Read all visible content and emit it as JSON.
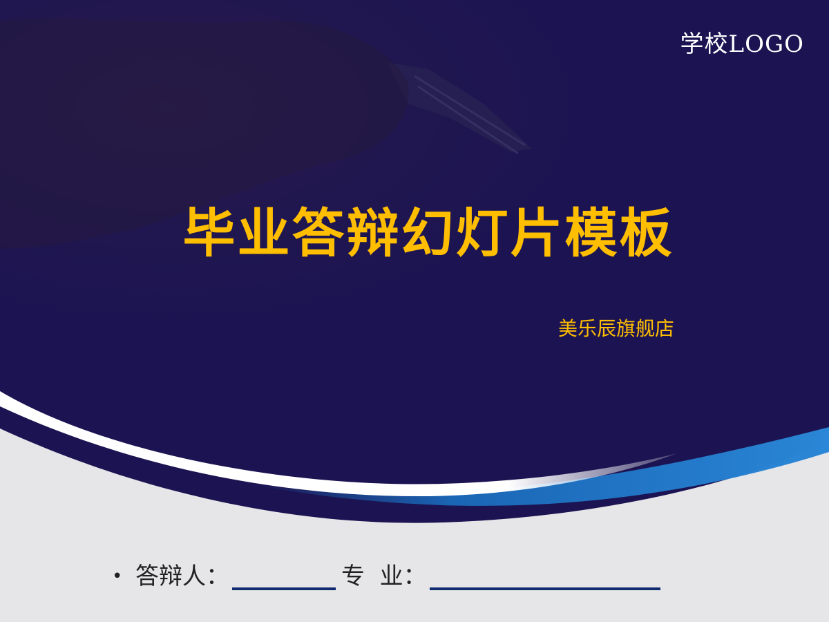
{
  "slide": {
    "logo_text": "学校LOGO",
    "title": "毕业答辩幻灯片模板",
    "subtitle": "美乐辰旗舰店",
    "defense_info": {
      "bullet": "•",
      "presenter_label": "答辩人：",
      "major_label": "专  业："
    }
  },
  "colors": {
    "navy_background": "#1c1452",
    "title_yellow": "#ffbe00",
    "swoosh_blue": "#1a6fc0",
    "light_gray": "#e6e6e8",
    "underline_blue": "#0f2a6e"
  }
}
